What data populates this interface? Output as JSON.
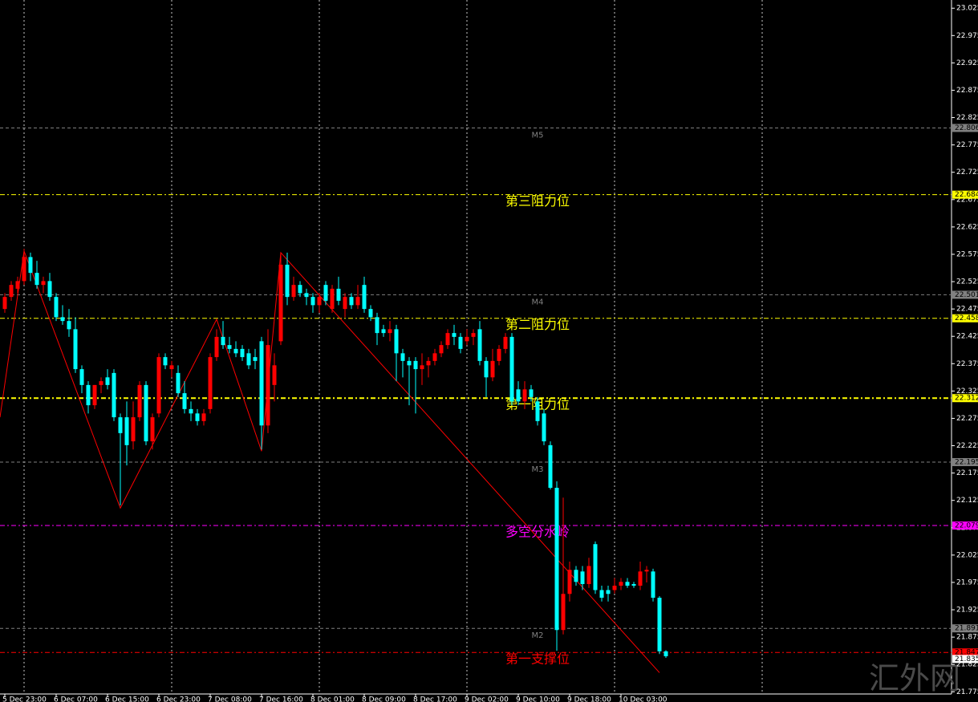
{
  "chart_data": {
    "type": "candlestick",
    "categories": [
      "5 Dec 23:00",
      null,
      null,
      null,
      null,
      null,
      null,
      null,
      "6 Dec 07:00",
      null,
      null,
      null,
      null,
      null,
      null,
      null,
      "6 Dec 15:00",
      null,
      null,
      null,
      null,
      null,
      null,
      null,
      "6 Dec 23:00",
      null,
      null,
      null,
      null,
      null,
      null,
      null,
      "7 Dec 08:00",
      null,
      null,
      null,
      null,
      null,
      null,
      null,
      "7 Dec 16:00",
      null,
      null,
      null,
      null,
      null,
      null,
      null,
      "8 Dec 01:00",
      null,
      null,
      null,
      null,
      null,
      null,
      null,
      "8 Dec 09:00",
      null,
      null,
      null,
      null,
      null,
      null,
      null,
      "8 Dec 17:00",
      null,
      null,
      null,
      null,
      null,
      null,
      null,
      "9 Dec 02:00",
      null,
      null,
      null,
      null,
      null,
      null,
      null,
      "9 Dec 10:00",
      null,
      null,
      null,
      null,
      null,
      null,
      null,
      "9 Dec 18:00",
      null,
      null,
      null,
      null,
      null,
      null,
      null,
      "10 Dec 03:00",
      null,
      null,
      null,
      null,
      null,
      null,
      null
    ],
    "open": [
      22.475,
      22.497,
      22.512,
      22.526,
      22.57,
      22.541,
      22.519,
      22.526,
      22.497,
      22.46,
      22.453,
      22.438,
      22.365,
      22.336,
      22.299,
      22.336,
      22.35,
      22.358,
      22.277,
      22.277,
      22.233,
      22.277,
      22.336,
      22.233,
      22.284,
      22.387,
      22.365,
      22.358,
      22.321,
      22.292,
      22.284,
      22.27,
      22.292,
      22.387,
      22.424,
      22.409,
      22.402,
      22.402,
      22.394,
      22.387,
      22.416,
      22.262,
      22.336,
      22.416,
      22.556,
      22.497,
      22.519,
      22.504,
      22.497,
      22.482,
      22.519,
      22.475,
      22.512,
      22.475,
      22.497,
      22.482,
      22.519,
      22.475,
      22.46,
      22.438,
      22.431,
      22.438,
      22.394,
      22.38,
      22.38,
      22.365,
      22.372,
      22.38,
      22.394,
      22.409,
      22.431,
      22.424,
      22.416,
      22.424,
      22.438,
      22.38,
      22.35,
      22.38,
      22.402,
      22.424,
      22.328,
      22.306,
      22.328,
      22.306,
      22.284,
      22.226,
      22.148,
      21.888,
      21.954,
      21.998,
      21.995,
      21.972,
      22.045,
      21.961,
      21.961,
      21.961,
      21.969,
      21.976,
      21.972,
      21.969,
      21.995,
      21.995,
      21.947,
      21.849
    ],
    "high": [
      22.504,
      22.526,
      22.534,
      22.585,
      22.578,
      22.563,
      22.534,
      22.541,
      22.504,
      22.482,
      22.475,
      22.46,
      22.372,
      22.343,
      22.336,
      22.35,
      22.365,
      22.365,
      22.284,
      22.306,
      22.306,
      22.343,
      22.343,
      22.284,
      22.394,
      22.394,
      22.38,
      22.372,
      22.343,
      22.306,
      22.292,
      22.292,
      22.394,
      22.438,
      22.453,
      22.424,
      22.416,
      22.409,
      22.402,
      22.402,
      22.424,
      22.438,
      22.394,
      22.578,
      22.578,
      22.534,
      22.526,
      22.512,
      22.504,
      22.504,
      22.526,
      22.519,
      22.534,
      22.504,
      22.504,
      22.519,
      22.534,
      22.482,
      22.468,
      22.446,
      22.453,
      22.446,
      22.402,
      22.387,
      22.387,
      22.394,
      22.387,
      22.402,
      22.416,
      22.438,
      22.446,
      22.431,
      22.438,
      22.438,
      22.453,
      22.387,
      22.402,
      22.409,
      22.431,
      22.431,
      22.343,
      22.343,
      22.336,
      22.314,
      22.292,
      22.233,
      22.16,
      22.13,
      22.013,
      22.005,
      22.005,
      22.02,
      22.05,
      21.969,
      21.969,
      21.983,
      21.983,
      21.983,
      21.976,
      22.013,
      22.005,
      22.0,
      21.95,
      21.851
    ],
    "low": [
      22.468,
      22.49,
      22.504,
      22.519,
      22.526,
      22.512,
      22.504,
      22.49,
      22.453,
      22.446,
      22.424,
      22.358,
      22.321,
      22.284,
      22.292,
      22.321,
      22.328,
      22.27,
      22.116,
      22.189,
      22.218,
      22.27,
      22.226,
      22.218,
      22.277,
      22.365,
      22.35,
      22.314,
      22.284,
      22.27,
      22.262,
      22.262,
      22.284,
      22.38,
      22.402,
      22.394,
      22.387,
      22.38,
      22.365,
      22.365,
      22.218,
      22.248,
      22.306,
      22.409,
      22.482,
      22.49,
      22.497,
      22.482,
      22.468,
      22.468,
      22.482,
      22.468,
      22.482,
      22.46,
      22.475,
      22.475,
      22.468,
      22.453,
      22.409,
      22.424,
      22.416,
      22.343,
      22.35,
      22.299,
      22.284,
      22.336,
      22.35,
      22.372,
      22.387,
      22.402,
      22.409,
      22.394,
      22.409,
      22.409,
      22.372,
      22.314,
      22.343,
      22.372,
      22.394,
      22.299,
      22.299,
      22.292,
      22.306,
      22.262,
      22.226,
      22.145,
      21.85,
      21.88,
      21.94,
      21.969,
      21.961,
      21.965,
      21.954,
      21.94,
      21.94,
      21.955,
      21.961,
      21.965,
      21.965,
      21.961,
      21.975,
      21.94,
      21.844,
      21.837
    ],
    "close": [
      22.497,
      22.519,
      22.526,
      22.57,
      22.541,
      22.519,
      22.526,
      22.497,
      22.46,
      22.453,
      22.438,
      22.365,
      22.336,
      22.299,
      22.336,
      22.343,
      22.336,
      22.277,
      22.248,
      22.226,
      22.277,
      22.336,
      22.233,
      22.277,
      22.387,
      22.372,
      22.372,
      22.321,
      22.292,
      22.284,
      22.27,
      22.284,
      22.387,
      22.424,
      22.409,
      22.402,
      22.394,
      22.387,
      22.372,
      22.38,
      22.262,
      22.409,
      22.372,
      22.556,
      22.497,
      22.519,
      22.504,
      22.497,
      22.482,
      22.497,
      22.49,
      22.512,
      22.49,
      22.497,
      22.482,
      22.497,
      22.475,
      22.46,
      22.431,
      22.431,
      22.438,
      22.394,
      22.38,
      22.372,
      22.365,
      22.372,
      22.38,
      22.394,
      22.409,
      22.431,
      22.424,
      22.402,
      22.424,
      22.431,
      22.38,
      22.35,
      22.38,
      22.402,
      22.424,
      22.306,
      22.306,
      22.328,
      22.314,
      22.27,
      22.233,
      22.148,
      21.888,
      21.954,
      21.998,
      21.976,
      21.972,
      22.005,
      21.961,
      21.947,
      21.954,
      21.969,
      21.976,
      21.969,
      21.969,
      21.995,
      21.998,
      21.947,
      21.849,
      21.84
    ],
    "up_color": "#ff0000",
    "down_color": "#00ffff",
    "ylim": [
      21.771,
      23.04
    ],
    "yticks": [
      23.025,
      22.975,
      22.925,
      22.875,
      22.825,
      22.775,
      22.725,
      22.675,
      22.625,
      22.575,
      22.525,
      22.475,
      22.425,
      22.375,
      22.325,
      22.275,
      22.225,
      22.175,
      22.125,
      22.075,
      22.025,
      21.975,
      21.925,
      21.875,
      21.825,
      21.775
    ],
    "levels": [
      {
        "name": "M5",
        "value": 22.806,
        "color": "#808080",
        "width": 1
      },
      {
        "name": "第三阻力位",
        "value": 22.684,
        "color": "#ffff00",
        "width": 1
      },
      {
        "name": "M4",
        "value": 22.501,
        "color": "#808080",
        "width": 1
      },
      {
        "name": "第二阻力位",
        "value": 22.458,
        "color": "#ffff00",
        "width": 1
      },
      {
        "name": "第一阻力位",
        "value": 22.312,
        "color": "#ffff00",
        "width": 2
      },
      {
        "name": "M3",
        "value": 22.195,
        "color": "#808080",
        "width": 1
      },
      {
        "name": "多空分水岭",
        "value": 22.079,
        "color": "#ff00ff",
        "width": 1
      },
      {
        "name": "M2",
        "value": 21.891,
        "color": "#808080",
        "width": 1
      },
      {
        "name": "第一支撑位",
        "value": 21.847,
        "color": "#ff0000",
        "width": 1
      }
    ],
    "bid": 21.835,
    "zigzag": {
      "color": "#ff0000",
      "x": [
        -0.75,
        3,
        18,
        33,
        40,
        43,
        102
      ],
      "y": [
        22.277,
        22.581,
        22.111,
        22.456,
        22.215,
        22.578,
        21.81
      ]
    },
    "watermark": "汇外网"
  }
}
